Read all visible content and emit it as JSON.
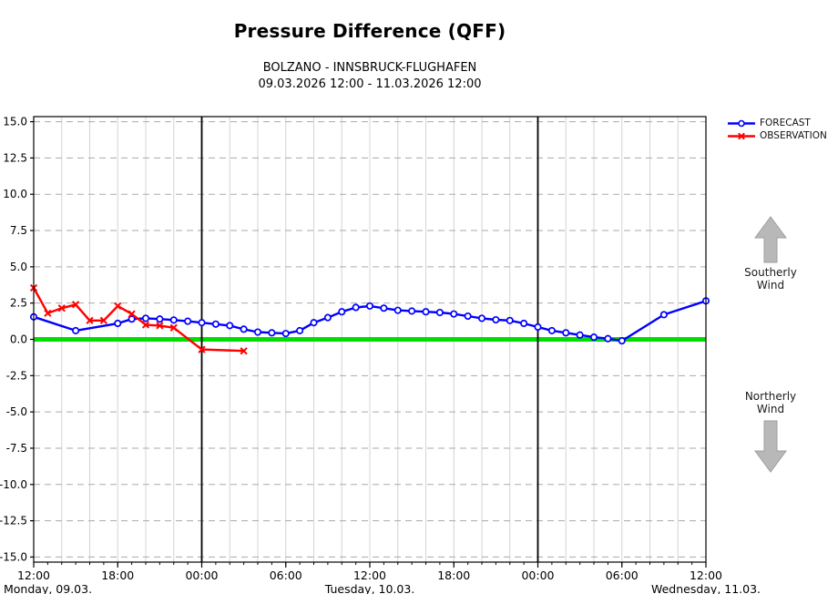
{
  "title": "Pressure Difference (QFF)",
  "subtitle_line1": "BOLZANO - INNSBRUCK-FLUGHAFEN",
  "subtitle_line2": "09.03.2026 12:00 - 11.03.2026 12:00",
  "colors": {
    "forecast": "#0000ff",
    "observation": "#ff0000",
    "zero_line": "#00dd00",
    "grid_horizontal": "#aaaaaa",
    "grid_vertical": "#d4d4d4",
    "day_divider": "#000000",
    "frame": "#000000",
    "arrow_fill": "#b8b8b8",
    "arrow_stroke": "#9e9e9e"
  },
  "side_annotations": {
    "southerly": {
      "line1": "Southerly",
      "line2": "Wind"
    },
    "northerly": {
      "line1": "Northerly",
      "line2": "Wind"
    }
  },
  "chart_data": {
    "type": "line",
    "title": "Pressure Difference (QFF)",
    "x_axis": {
      "total_hours": 48,
      "start": "09.03.2026 12:00",
      "end": "11.03.2026 12:00",
      "major_tick_hours": [
        0,
        6,
        12,
        18,
        24,
        30,
        36,
        42,
        48
      ],
      "major_tick_labels": [
        "12:00",
        "18:00",
        "00:00",
        "06:00",
        "12:00",
        "18:00",
        "00:00",
        "06:00",
        "12:00"
      ],
      "minor_tick_every_hours": 1,
      "vgrid_every_hours": 2,
      "day_divider_hours": [
        12,
        36
      ],
      "day_labels": [
        {
          "text": "Monday, 09.03.",
          "hour": 0,
          "anchor": "start",
          "px": 4
        },
        {
          "text": "Tuesday, 10.03.",
          "hour": 24,
          "anchor": "middle"
        },
        {
          "text": "Wednesday, 11.03.",
          "hour": 48,
          "anchor": "middle"
        }
      ]
    },
    "y_axis": {
      "min": -15,
      "max": 15,
      "step": 2.5,
      "ticks": [
        15.0,
        12.5,
        10.0,
        7.5,
        5.0,
        2.5,
        0.0,
        -2.5,
        -5.0,
        -7.5,
        -10.0,
        -12.5,
        -15.0
      ],
      "tick_labels": [
        "15.0",
        "12.5",
        "10.0",
        "7.5",
        "5.0",
        "2.5",
        "0.0",
        "-2.5",
        "-5.0",
        "-7.5",
        "-10.0",
        "-12.5",
        "-15.0"
      ],
      "zero_line_value": 0.0,
      "grid": "dashed"
    },
    "legend_position": "top-right-outside",
    "series": [
      {
        "name": "FORECAST",
        "color": "#0000ff",
        "marker": "circle",
        "points": [
          [
            0,
            1.55
          ],
          [
            3,
            0.6
          ],
          [
            6,
            1.1
          ],
          [
            7,
            1.4
          ],
          [
            8,
            1.45
          ],
          [
            9,
            1.4
          ],
          [
            10,
            1.33
          ],
          [
            11,
            1.25
          ],
          [
            12,
            1.15
          ],
          [
            13,
            1.05
          ],
          [
            14,
            0.95
          ],
          [
            15,
            0.7
          ],
          [
            16,
            0.5
          ],
          [
            17,
            0.45
          ],
          [
            18,
            0.4
          ],
          [
            19,
            0.6
          ],
          [
            20,
            1.15
          ],
          [
            21,
            1.5
          ],
          [
            22,
            1.9
          ],
          [
            23,
            2.2
          ],
          [
            24,
            2.3
          ],
          [
            25,
            2.15
          ],
          [
            26,
            2.0
          ],
          [
            27,
            1.95
          ],
          [
            28,
            1.9
          ],
          [
            29,
            1.85
          ],
          [
            30,
            1.75
          ],
          [
            31,
            1.6
          ],
          [
            32,
            1.45
          ],
          [
            33,
            1.35
          ],
          [
            34,
            1.3
          ],
          [
            35,
            1.1
          ],
          [
            36,
            0.85
          ],
          [
            37,
            0.6
          ],
          [
            38,
            0.45
          ],
          [
            39,
            0.3
          ],
          [
            40,
            0.15
          ],
          [
            41,
            0.05
          ],
          [
            42,
            -0.1
          ],
          [
            45,
            1.7
          ],
          [
            48,
            2.65
          ]
        ]
      },
      {
        "name": "OBSERVATION",
        "color": "#ff0000",
        "marker": "x",
        "points": [
          [
            0,
            3.55
          ],
          [
            1,
            1.8
          ],
          [
            2,
            2.15
          ],
          [
            3,
            2.4
          ],
          [
            4,
            1.3
          ],
          [
            5,
            1.3
          ],
          [
            6,
            2.3
          ],
          [
            7,
            1.75
          ],
          [
            8,
            1.0
          ],
          [
            9,
            0.95
          ],
          [
            10,
            0.8
          ],
          [
            12,
            -0.7
          ],
          [
            15,
            -0.8
          ]
        ]
      }
    ]
  }
}
